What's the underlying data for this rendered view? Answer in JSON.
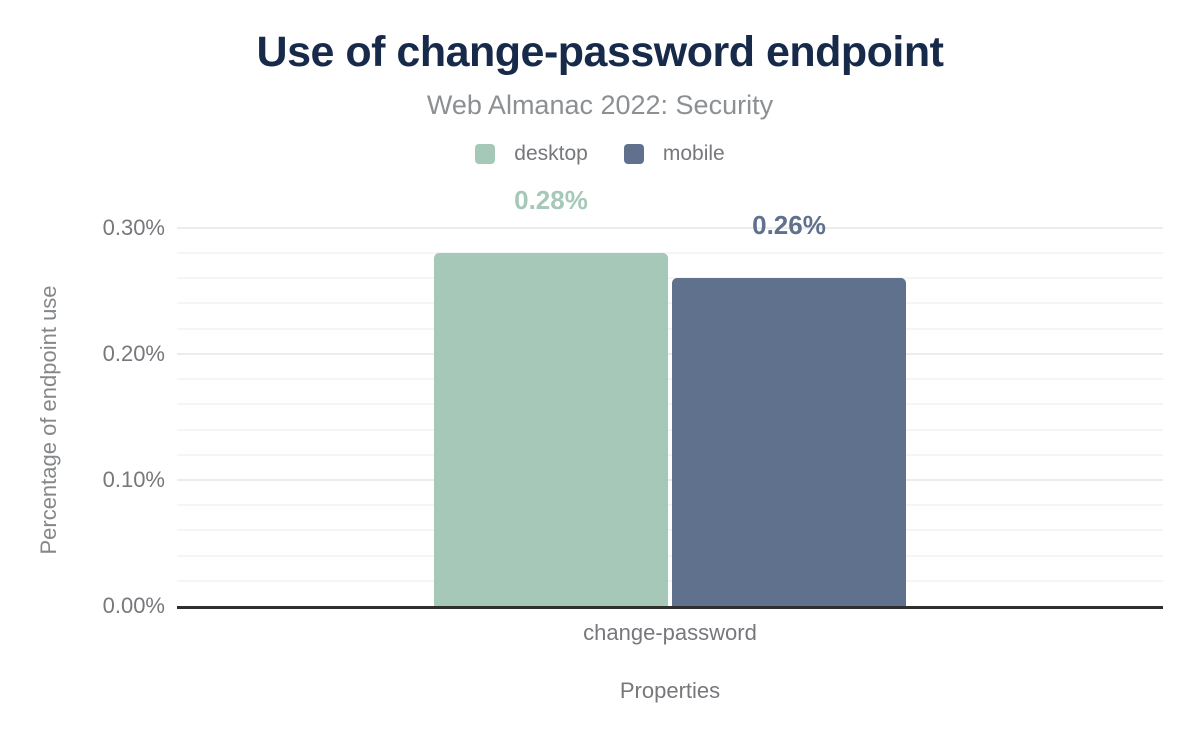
{
  "chart_data": {
    "type": "bar",
    "title": "Use of change-password endpoint",
    "subtitle": "Web Almanac 2022: Security",
    "categories": [
      "change-password"
    ],
    "series": [
      {
        "name": "desktop",
        "values": [
          0.28
        ],
        "data_labels": [
          "0.28%"
        ],
        "color": "#a6c8b8"
      },
      {
        "name": "mobile",
        "values": [
          0.26
        ],
        "data_labels": [
          "0.26%"
        ],
        "color": "#5f718c"
      }
    ],
    "xlabel": "Properties",
    "ylabel": "Percentage of endpoint use",
    "ylim": [
      0,
      0.33
    ],
    "yticks": [
      {
        "value": 0.3,
        "label": "0.30%"
      },
      {
        "value": 0.2,
        "label": "0.20%"
      },
      {
        "value": 0.1,
        "label": "0.10%"
      },
      {
        "value": 0.0,
        "label": "0.00%"
      }
    ],
    "grid": {
      "minor_step": 0.02,
      "major_step": 0.1,
      "minor_color": "#f5f5f5",
      "major_color": "#ececec",
      "axis_line_color": "#2f2f30"
    },
    "legend_position": "top"
  }
}
